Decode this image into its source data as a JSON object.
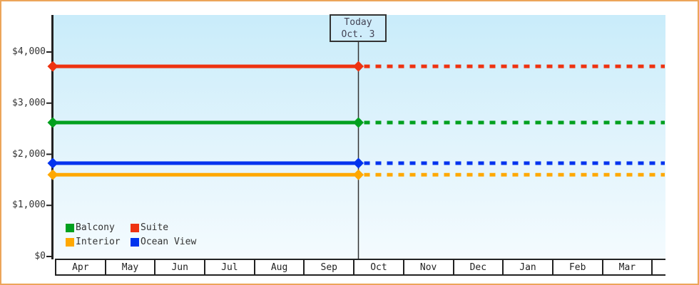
{
  "frame": {
    "border_color": "#ECA55A",
    "background_color": "#FFFFFF",
    "plot_gradient_top": "#C9ECFA",
    "plot_gradient_bottom": "#F4FBFE",
    "axis_color": "#222222",
    "text_color": "#333333"
  },
  "today_marker": {
    "line1": "Today",
    "line2": "Oct. 3",
    "box_background": "#CFEDFB",
    "box_border_color": "#333333"
  },
  "legend": {
    "items": [
      {
        "label": "Balcony",
        "color": "#00A01E"
      },
      {
        "label": "Suite",
        "color": "#EE3311"
      },
      {
        "label": "Interior",
        "color": "#FFA800"
      },
      {
        "label": "Ocean View",
        "color": "#0033EE"
      }
    ]
  },
  "chart_data": {
    "type": "line",
    "title": "",
    "categories": [
      "Apr",
      "May",
      "Jun",
      "Jul",
      "Aug",
      "Sep",
      "Oct",
      "Nov",
      "Dec",
      "Jan",
      "Feb",
      "Mar"
    ],
    "ylim": [
      0,
      4000
    ],
    "y_ticks": [
      {
        "value": 0,
        "label": "$0"
      },
      {
        "value": 1000,
        "label": "$1,000"
      },
      {
        "value": 2000,
        "label": "$2,000"
      },
      {
        "value": 3000,
        "label": "$3,000"
      },
      {
        "value": 4000,
        "label": "$4,000"
      }
    ],
    "series": [
      {
        "name": "Suite",
        "color": "#EE3311",
        "value": 3720
      },
      {
        "name": "Balcony",
        "color": "#00A01E",
        "value": 2620
      },
      {
        "name": "Ocean View",
        "color": "#0033EE",
        "value": 1825
      },
      {
        "name": "Interior",
        "color": "#FFA800",
        "value": 1600
      }
    ],
    "annotations": {
      "today": {
        "label": [
          "Today",
          "Oct. 3"
        ],
        "between_months": "Sep|Oct",
        "style_before": "solid",
        "style_after": "dashed",
        "marker": "diamond"
      }
    },
    "legend_position": "bottom-left-inside",
    "grid": false
  }
}
